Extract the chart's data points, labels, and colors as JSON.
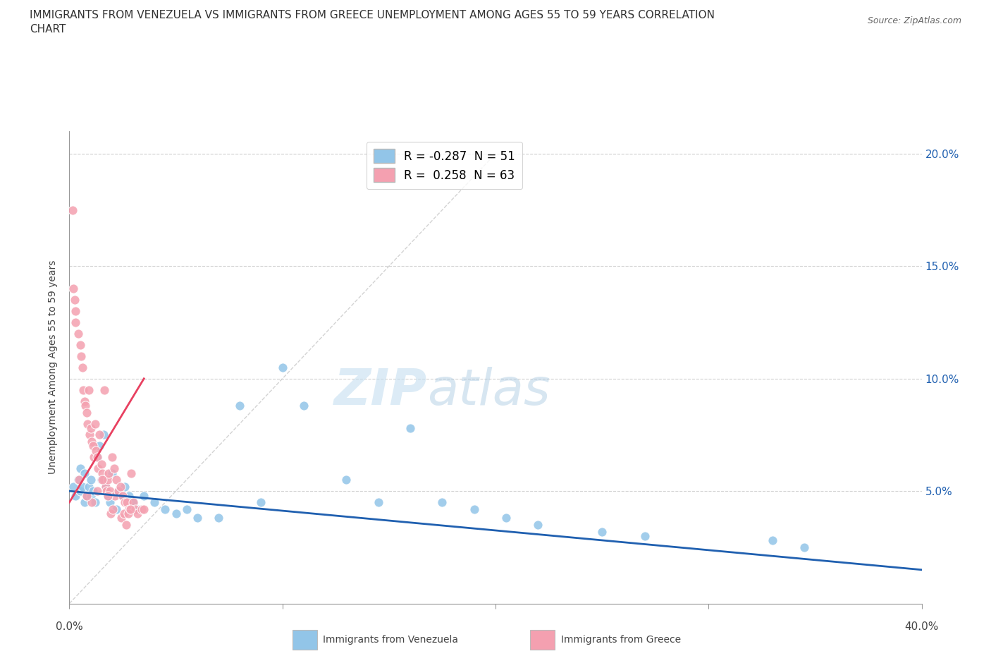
{
  "title": "IMMIGRANTS FROM VENEZUELA VS IMMIGRANTS FROM GREECE UNEMPLOYMENT AMONG AGES 55 TO 59 YEARS CORRELATION\nCHART",
  "source": "Source: ZipAtlas.com",
  "ylabel": "Unemployment Among Ages 55 to 59 years",
  "xlim": [
    0.0,
    40.0
  ],
  "ylim": [
    0.0,
    21.0
  ],
  "legend_r_venezuela": "-0.287",
  "legend_n_venezuela": "51",
  "legend_r_greece": "0.258",
  "legend_n_greece": "63",
  "color_venezuela": "#92c5e8",
  "color_greece": "#f4a0b0",
  "trendline_venezuela_color": "#2060b0",
  "trendline_greece_color": "#e84060",
  "diagonal_color": "#c8c8c8",
  "watermark_color": "#daeef8",
  "venezuela_x": [
    0.2,
    0.3,
    0.4,
    0.5,
    0.5,
    0.6,
    0.7,
    0.7,
    0.8,
    0.9,
    1.0,
    1.0,
    1.1,
    1.2,
    1.3,
    1.4,
    1.5,
    1.6,
    1.7,
    1.8,
    1.9,
    2.0,
    2.2,
    2.3,
    2.5,
    2.6,
    2.8,
    3.0,
    3.2,
    3.5,
    4.0,
    4.5,
    5.0,
    5.5,
    6.0,
    7.0,
    8.0,
    9.0,
    10.0,
    11.0,
    13.0,
    14.5,
    16.0,
    17.5,
    19.0,
    20.5,
    22.0,
    25.0,
    27.0,
    33.0,
    34.5
  ],
  "venezuela_y": [
    5.2,
    4.8,
    5.5,
    5.0,
    6.0,
    5.2,
    4.5,
    5.8,
    4.8,
    5.2,
    5.5,
    4.8,
    5.0,
    4.5,
    6.5,
    7.0,
    5.5,
    7.5,
    5.2,
    4.8,
    4.5,
    5.8,
    4.2,
    5.0,
    4.8,
    5.2,
    4.8,
    4.5,
    4.2,
    4.8,
    4.5,
    4.2,
    4.0,
    4.2,
    3.8,
    3.8,
    8.8,
    4.5,
    10.5,
    8.8,
    5.5,
    4.5,
    7.8,
    4.5,
    4.2,
    3.8,
    3.5,
    3.2,
    3.0,
    2.8,
    2.5
  ],
  "greece_x": [
    0.15,
    0.25,
    0.3,
    0.4,
    0.5,
    0.55,
    0.6,
    0.65,
    0.7,
    0.75,
    0.8,
    0.85,
    0.9,
    0.95,
    1.0,
    1.05,
    1.1,
    1.15,
    1.2,
    1.25,
    1.3,
    1.35,
    1.4,
    1.5,
    1.55,
    1.6,
    1.65,
    1.7,
    1.75,
    1.8,
    1.85,
    1.9,
    2.0,
    2.1,
    2.15,
    2.2,
    2.3,
    2.4,
    2.5,
    2.6,
    2.7,
    2.8,
    2.9,
    3.0,
    3.1,
    3.2,
    3.4,
    0.2,
    0.45,
    1.05,
    1.55,
    1.95,
    2.05,
    2.45,
    2.55,
    2.65,
    2.75,
    2.85,
    0.8,
    1.3,
    3.5,
    0.3,
    1.8
  ],
  "greece_y": [
    17.5,
    13.5,
    13.0,
    12.0,
    11.5,
    11.0,
    10.5,
    9.5,
    9.0,
    8.8,
    8.5,
    8.0,
    9.5,
    7.5,
    7.8,
    7.2,
    7.0,
    6.5,
    8.0,
    6.8,
    6.5,
    6.0,
    7.5,
    6.2,
    5.8,
    5.5,
    9.5,
    5.2,
    5.0,
    5.5,
    5.8,
    5.0,
    6.5,
    6.0,
    4.8,
    5.5,
    5.0,
    5.2,
    4.8,
    4.5,
    4.5,
    4.2,
    5.8,
    4.5,
    4.2,
    4.0,
    4.2,
    14.0,
    5.5,
    4.5,
    5.5,
    4.0,
    4.2,
    3.8,
    4.0,
    3.5,
    4.0,
    4.2,
    4.8,
    5.0,
    4.2,
    12.5,
    4.8
  ],
  "ven_trend_x0": 0.0,
  "ven_trend_y0": 5.0,
  "ven_trend_x1": 40.0,
  "ven_trend_y1": 1.5,
  "gre_trend_x0": 0.0,
  "gre_trend_y0": 4.5,
  "gre_trend_x1": 3.5,
  "gre_trend_y1": 10.0,
  "yticks": [
    0,
    5,
    10,
    15,
    20
  ],
  "ytick_labels_right": [
    "",
    "5.0%",
    "10.0%",
    "15.0%",
    "20.0%"
  ],
  "xtick_positions": [
    0,
    10,
    20,
    30,
    40
  ],
  "xtick_label_left": "0.0%",
  "xtick_label_right": "40.0%"
}
